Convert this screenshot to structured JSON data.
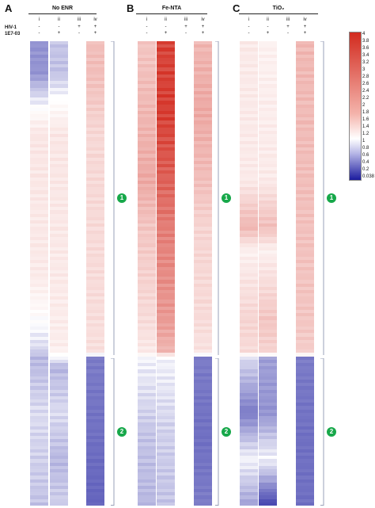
{
  "row_labels": {
    "virus": "HIV-1",
    "compound": "1E7-03"
  },
  "cluster_labels": [
    "1",
    "2"
  ],
  "legend": {
    "ticks": [
      "4",
      "3.8",
      "3.6",
      "3.4",
      "3.2",
      "3",
      "2.8",
      "2.6",
      "2.4",
      "2.2",
      "2",
      "1.8",
      "1.6",
      "1.4",
      "1.2",
      "1",
      "0.8",
      "0.6",
      "0.4",
      "0.2",
      "0.038"
    ],
    "colors": {
      "high": "#d22a1e",
      "mid": "#ffffff",
      "low": "#1b1b9e"
    }
  },
  "chart_data": [
    {
      "type": "heatmap",
      "panel": "A",
      "title": "No ENR",
      "columns": [
        {
          "label": "i",
          "hiv": "-",
          "compound": "-"
        },
        {
          "label": "ii",
          "hiv": "-",
          "compound": "+"
        },
        {
          "label": "iii",
          "hiv": "+",
          "compound": "-"
        },
        {
          "label": "iv",
          "hiv": "+",
          "compound": "+"
        }
      ],
      "cluster_split_fraction": 0.68,
      "column_profiles": [
        [
          [
            0.07,
            0.55
          ],
          [
            0.2,
            1.35
          ],
          [
            0.5,
            1.3
          ],
          [
            0.66,
            0.85
          ],
          [
            0.68,
            0.7
          ],
          [
            0.8,
            0.85
          ],
          [
            0.9,
            0.8
          ],
          [
            1.0,
            0.75
          ]
        ],
        [
          [
            0.07,
            0.75
          ],
          [
            0.2,
            1.35
          ],
          [
            0.5,
            1.3
          ],
          [
            0.66,
            1.25
          ],
          [
            0.7,
            0.7
          ],
          [
            0.8,
            0.85
          ],
          [
            0.9,
            0.7
          ],
          [
            1.0,
            0.8
          ]
        ],
        null,
        [
          [
            0.07,
            1.9
          ],
          [
            0.2,
            1.55
          ],
          [
            0.5,
            1.5
          ],
          [
            0.67,
            1.45
          ],
          [
            0.68,
            0.45
          ],
          [
            0.85,
            0.4
          ],
          [
            1.0,
            0.35
          ]
        ]
      ]
    },
    {
      "type": "heatmap",
      "panel": "B",
      "title": "Fe-NTA",
      "columns": [
        {
          "label": "i",
          "hiv": "-",
          "compound": "-"
        },
        {
          "label": "ii",
          "hiv": "-",
          "compound": "+"
        },
        {
          "label": "iii",
          "hiv": "+",
          "compound": "-"
        },
        {
          "label": "iv",
          "hiv": "+",
          "compound": "+"
        }
      ],
      "cluster_split_fraction": 0.68,
      "column_profiles": [
        [
          [
            0.0,
            1.8
          ],
          [
            0.15,
            2.0
          ],
          [
            0.3,
            2.2
          ],
          [
            0.4,
            1.8
          ],
          [
            0.6,
            1.5
          ],
          [
            0.67,
            1.3
          ],
          [
            0.68,
            0.95
          ],
          [
            0.85,
            0.75
          ],
          [
            1.0,
            0.7
          ]
        ],
        [
          [
            0.0,
            3.6
          ],
          [
            0.15,
            3.7
          ],
          [
            0.3,
            3.2
          ],
          [
            0.4,
            2.8
          ],
          [
            0.6,
            2.4
          ],
          [
            0.67,
            2.0
          ],
          [
            0.68,
            0.95
          ],
          [
            0.85,
            0.8
          ],
          [
            1.0,
            0.75
          ]
        ],
        null,
        [
          [
            0.0,
            2.0
          ],
          [
            0.15,
            2.2
          ],
          [
            0.3,
            1.9
          ],
          [
            0.4,
            1.6
          ],
          [
            0.6,
            1.5
          ],
          [
            0.67,
            1.4
          ],
          [
            0.68,
            0.45
          ],
          [
            0.85,
            0.4
          ],
          [
            1.0,
            0.45
          ]
        ]
      ]
    },
    {
      "type": "heatmap",
      "panel": "C",
      "title": "TiO₂",
      "columns": [
        {
          "label": "i",
          "hiv": "-",
          "compound": "-"
        },
        {
          "label": "ii",
          "hiv": "-",
          "compound": "+"
        },
        {
          "label": "iii",
          "hiv": "+",
          "compound": "-"
        },
        {
          "label": "iv",
          "hiv": "+",
          "compound": "+"
        }
      ],
      "cluster_split_fraction": 0.68,
      "column_profiles": [
        [
          [
            0.0,
            1.3
          ],
          [
            0.3,
            1.3
          ],
          [
            0.4,
            2.0
          ],
          [
            0.45,
            1.2
          ],
          [
            0.6,
            1.6
          ],
          [
            0.67,
            1.5
          ],
          [
            0.68,
            0.85
          ],
          [
            0.8,
            0.45
          ],
          [
            0.9,
            0.95
          ],
          [
            1.0,
            0.6
          ]
        ],
        [
          [
            0.0,
            1.2
          ],
          [
            0.3,
            1.3
          ],
          [
            0.4,
            1.9
          ],
          [
            0.45,
            1.2
          ],
          [
            0.6,
            1.8
          ],
          [
            0.67,
            1.6
          ],
          [
            0.68,
            0.6
          ],
          [
            0.8,
            0.55
          ],
          [
            0.9,
            0.95
          ],
          [
            1.0,
            0.2
          ]
        ],
        null,
        [
          [
            0.0,
            2.0
          ],
          [
            0.3,
            1.9
          ],
          [
            0.6,
            1.8
          ],
          [
            0.67,
            1.7
          ],
          [
            0.68,
            0.45
          ],
          [
            0.85,
            0.4
          ],
          [
            1.0,
            0.4
          ]
        ]
      ]
    }
  ]
}
